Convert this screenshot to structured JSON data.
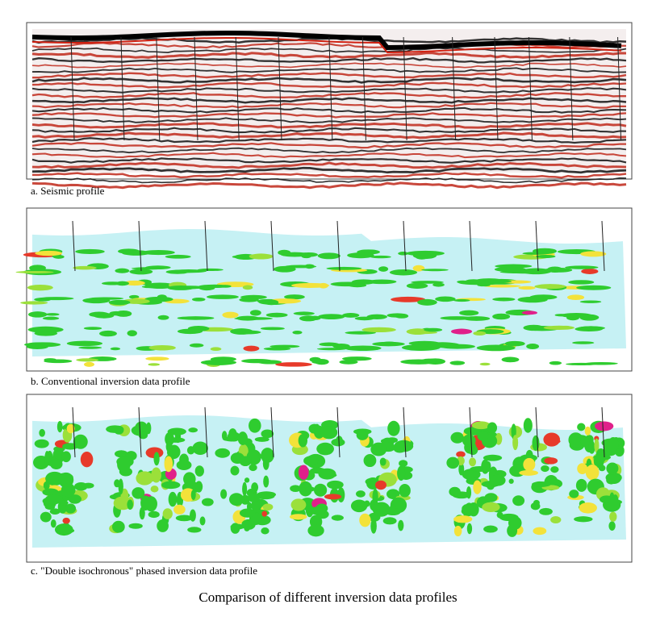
{
  "figure": {
    "panels": [
      {
        "caption": "a. Seismic profile"
      },
      {
        "caption": "b. Conventional inversion data profile"
      },
      {
        "caption": "c. \"Double isochronous\" phased inversion data profile"
      }
    ],
    "title": "Comparison of different inversion data profiles"
  }
}
